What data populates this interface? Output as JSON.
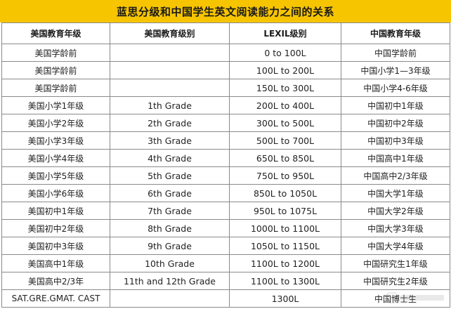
{
  "title": "蓝思分级和中国学生英文阅读能力之间的关系",
  "table": {
    "headers": [
      "美国教育年级",
      "美国教育级别",
      "LEXIL级别",
      "中国教育年级"
    ],
    "rows": [
      [
        "美国学龄前",
        "",
        "0 to 100L",
        "中国学龄前"
      ],
      [
        "美国学龄前",
        "",
        "100L to 200L",
        "中国小学1—3年级"
      ],
      [
        "美国学龄前",
        "",
        "150L to 300L",
        "中国小学4-6年级"
      ],
      [
        "美国小学1年级",
        "1th Grade",
        "200L to 400L",
        "中国初中1年级"
      ],
      [
        "美国小学2年级",
        "2th Grade",
        "300L to 500L",
        "中国初中2年级"
      ],
      [
        "美国小学3年级",
        "3th Grade",
        "500L to 700L",
        "中国初中3年级"
      ],
      [
        "美国小学4年级",
        "4th Grade",
        "650L to 850L",
        "中国高中1年级"
      ],
      [
        "美国小学5年级",
        "5th Grade",
        "750L to 950L",
        "中国高中2/3年级"
      ],
      [
        "美国小学6年级",
        "6th Grade",
        "850L to 1050L",
        "中国大学1年级"
      ],
      [
        "美国初中1年级",
        "7th Grade",
        "950L to 1075L",
        "中国大学2年级"
      ],
      [
        "美国初中2年级",
        "8th Grade",
        "1000L to 1100L",
        "中国大学3年级"
      ],
      [
        "美国初中3年级",
        "9th Grade",
        "1050L to 1150L",
        "中国大学4年级"
      ],
      [
        "美国高中1年级",
        "10th Grade",
        "1100L to 1200L",
        "中国研究生1年级"
      ],
      [
        "美国高中2/3年",
        "11th and 12th Grade",
        "1100L to 1300L",
        "中国研究生2年级"
      ],
      [
        "SAT.GRE.GMAT. CAST",
        "",
        "1300L",
        "中国博士生"
      ]
    ]
  },
  "colors": {
    "title_background": "#f7c500",
    "grid_lines": "#8a8a8a"
  }
}
